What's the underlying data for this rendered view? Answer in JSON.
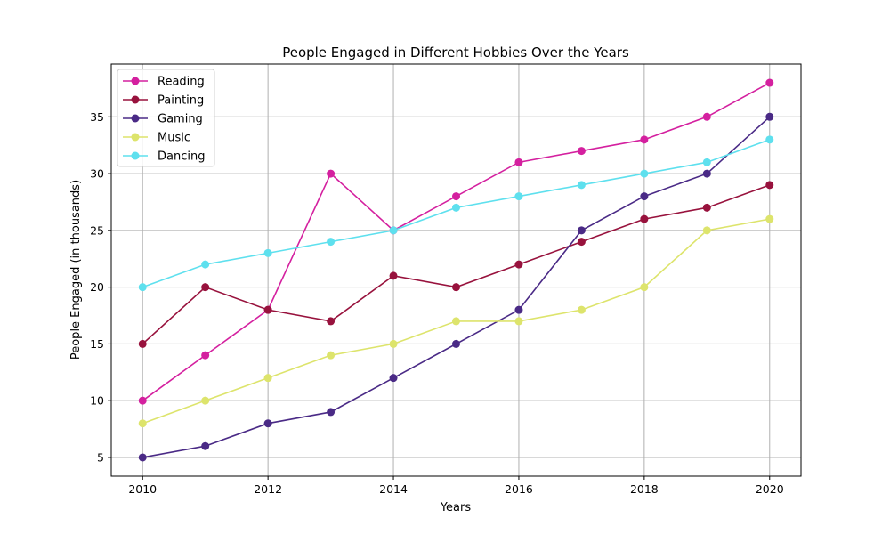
{
  "chart_data": {
    "type": "line",
    "title": "People Engaged in Different Hobbies Over the Years",
    "xlabel": "Years",
    "ylabel": "People Engaged (in thousands)",
    "x": [
      2010,
      2011,
      2012,
      2013,
      2014,
      2015,
      2016,
      2017,
      2018,
      2019,
      2020
    ],
    "xticks": [
      2010,
      2012,
      2014,
      2016,
      2018,
      2020
    ],
    "yticks": [
      5,
      10,
      15,
      20,
      25,
      30,
      35
    ],
    "xlim": [
      2009.5,
      2020.5
    ],
    "ylim": [
      3.35,
      39.65
    ],
    "grid": true,
    "legend_position": "top-left",
    "series": [
      {
        "name": "Reading",
        "color": "#d4209f",
        "values": [
          10,
          14,
          18,
          30,
          25,
          28,
          31,
          32,
          33,
          35,
          38
        ]
      },
      {
        "name": "Painting",
        "color": "#98123d",
        "values": [
          15,
          20,
          18,
          17,
          21,
          20,
          22,
          24,
          26,
          27,
          29
        ]
      },
      {
        "name": "Gaming",
        "color": "#4a2a86",
        "values": [
          5,
          6,
          8,
          9,
          12,
          15,
          18,
          25,
          28,
          30,
          35
        ]
      },
      {
        "name": "Music",
        "color": "#dde46c",
        "values": [
          8,
          10,
          12,
          14,
          15,
          17,
          17,
          18,
          20,
          25,
          26
        ]
      },
      {
        "name": "Dancing",
        "color": "#5ee0ee",
        "values": [
          20,
          22,
          23,
          24,
          25,
          27,
          28,
          29,
          30,
          31,
          33
        ]
      }
    ]
  }
}
